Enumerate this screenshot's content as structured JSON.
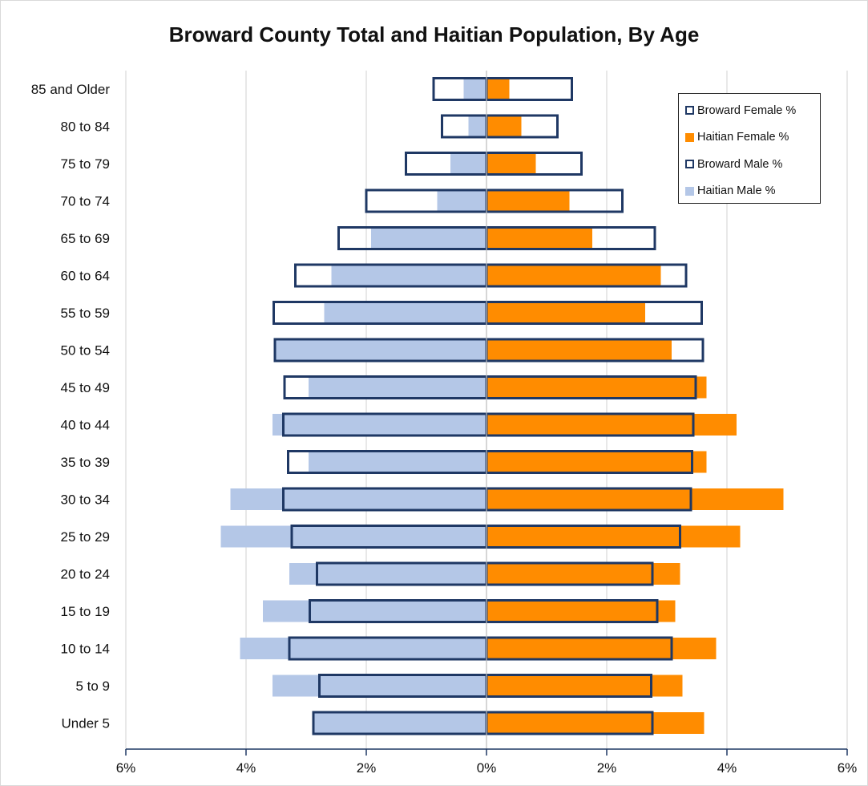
{
  "chart_data": {
    "type": "bar",
    "orientation": "horizontal",
    "title": "Broward County Total and Haitian Population, By Age",
    "categories": [
      "85 and Older",
      "80 to 84",
      "75 to 79",
      "70 to 74",
      "65 to 69",
      "60 to 64",
      "55 to 59",
      "50 to 54",
      "45 to 49",
      "40 to 44",
      "35 to 39",
      "30 to 34",
      "25 to 29",
      "20 to 24",
      "15 to 19",
      "10 to 14",
      "5 to 9",
      "Under 5"
    ],
    "series": [
      {
        "name": "Broward Female %",
        "style": "outline",
        "color": "#1f3864",
        "side": "right",
        "values": [
          1.42,
          1.18,
          1.58,
          2.26,
          2.8,
          3.32,
          3.58,
          3.6,
          3.48,
          3.44,
          3.42,
          3.4,
          3.22,
          2.76,
          2.84,
          3.08,
          2.74,
          2.76
        ]
      },
      {
        "name": "Haitian Female %",
        "style": "fill",
        "color": "#ff8c00",
        "side": "right",
        "values": [
          0.38,
          0.58,
          0.82,
          1.38,
          1.76,
          2.9,
          2.64,
          3.08,
          3.66,
          4.16,
          3.66,
          4.94,
          4.22,
          3.22,
          3.14,
          3.82,
          3.26,
          3.62
        ]
      },
      {
        "name": "Broward Male %",
        "style": "outline",
        "color": "#1f3864",
        "side": "left",
        "values": [
          0.88,
          0.74,
          1.34,
          2.0,
          2.46,
          3.18,
          3.54,
          3.52,
          3.36,
          3.38,
          3.3,
          3.38,
          3.24,
          2.82,
          2.94,
          3.28,
          2.78,
          2.88
        ]
      },
      {
        "name": "Haitian Male %",
        "style": "fill",
        "color": "#b4c7e7",
        "side": "left",
        "values": [
          0.38,
          0.3,
          0.6,
          0.82,
          1.92,
          2.58,
          2.7,
          3.52,
          2.96,
          3.56,
          2.96,
          4.26,
          4.42,
          3.28,
          3.72,
          4.1,
          3.56,
          2.9
        ]
      }
    ],
    "xlim": [
      -6,
      6
    ],
    "xticks": [
      -6,
      -4,
      -2,
      0,
      2,
      4,
      6
    ],
    "xtick_labels": [
      "6%",
      "4%",
      "2%",
      "0%",
      "2%",
      "4%",
      "6%"
    ],
    "grid": true,
    "legend_position": "top-right"
  }
}
